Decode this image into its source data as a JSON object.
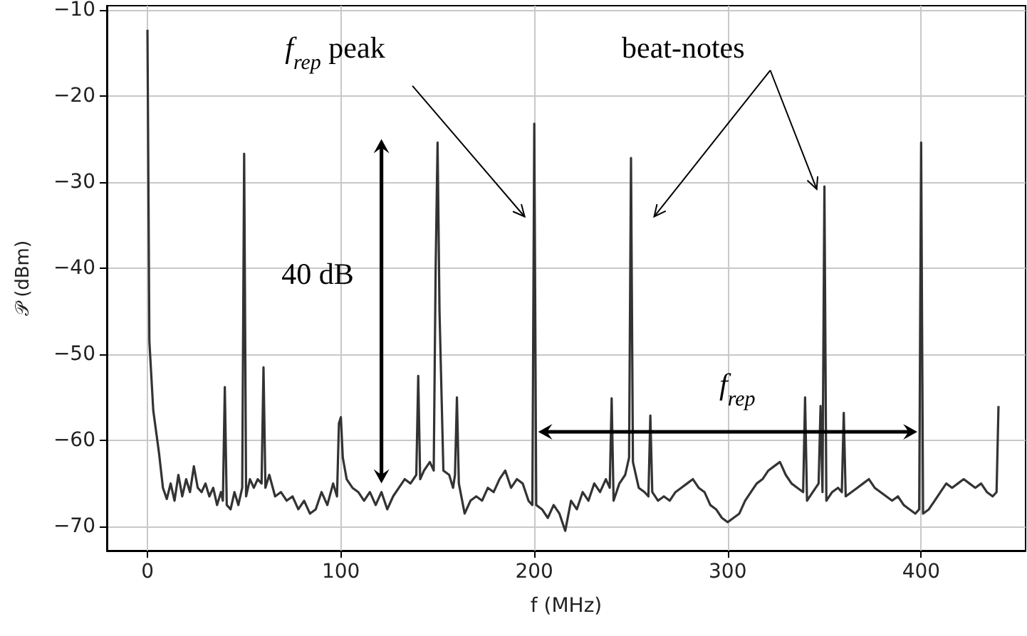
{
  "chart_data": {
    "type": "line",
    "xlabel": "f (MHz)",
    "ylabel": "𝒫 (dBm)",
    "xlim": [
      -21,
      454
    ],
    "ylim": [
      -72.8,
      -9.5
    ],
    "xticks": [
      0,
      100,
      200,
      300,
      400
    ],
    "yticks": [
      -70,
      -60,
      -50,
      -40,
      -30,
      -20,
      -10
    ],
    "grid": true,
    "marker": "none",
    "line_style": "solid",
    "annotations": [
      "f$_{rep}$ peak",
      "beat-notes",
      "40 dB",
      "f$_{rep}$"
    ],
    "series": [
      {
        "color": "#333333",
        "x": [
          0,
          1,
          3,
          6,
          8,
          10,
          12,
          14,
          16,
          18,
          20,
          22,
          24,
          26,
          28,
          30,
          32,
          34,
          36,
          38,
          39,
          40,
          41,
          43,
          45,
          47,
          49,
          50,
          51,
          53,
          55,
          57,
          59,
          60,
          61,
          63,
          66,
          69,
          72,
          75,
          78,
          81,
          84,
          87,
          90,
          93,
          96,
          98,
          99,
          100,
          101,
          103,
          106,
          109,
          112,
          115,
          118,
          121,
          124,
          127,
          130,
          133,
          136,
          139,
          140,
          141,
          143,
          146,
          148,
          149,
          150,
          151,
          153,
          156,
          158,
          159,
          160,
          161,
          164,
          167,
          170,
          173,
          176,
          179,
          182,
          185,
          188,
          191,
          194,
          197,
          199,
          200,
          201,
          204,
          207,
          210,
          213,
          216,
          219,
          222,
          225,
          228,
          231,
          234,
          237,
          239,
          240,
          241,
          244,
          247,
          249,
          250,
          251,
          254,
          257,
          259,
          260,
          261,
          264,
          267,
          270,
          273,
          276,
          279,
          282,
          285,
          288,
          291,
          294,
          297,
          300,
          303,
          306,
          309,
          312,
          315,
          318,
          321,
          324,
          327,
          330,
          333,
          336,
          339,
          340,
          341,
          344,
          347,
          348,
          349,
          350,
          351,
          354,
          357,
          359,
          360,
          361,
          364,
          367,
          370,
          373,
          376,
          379,
          382,
          385,
          388,
          391,
          394,
          397,
          399,
          400,
          401,
          404,
          407,
          410,
          413,
          416,
          419,
          422,
          425,
          428,
          431,
          434,
          437,
          439,
          440
        ],
        "values": [
          -12.3,
          -48.5,
          -56.5,
          -61.5,
          -65.5,
          -66.8,
          -65,
          -67,
          -64,
          -66.5,
          -64.5,
          -66,
          -63,
          -65.5,
          -66,
          -65,
          -66.5,
          -65.5,
          -67.5,
          -66,
          -67,
          -53.8,
          -67.5,
          -68,
          -66,
          -67.5,
          -65.5,
          -26.7,
          -66.5,
          -64.5,
          -65.5,
          -64.5,
          -65,
          -51.5,
          -65.5,
          -64,
          -66.5,
          -66,
          -67,
          -66.5,
          -68,
          -67,
          -68.5,
          -68,
          -66,
          -67.5,
          -65,
          -66.5,
          -58,
          -57.3,
          -62,
          -64.5,
          -65.5,
          -66,
          -67,
          -66,
          -67.5,
          -66,
          -68,
          -66.5,
          -65.5,
          -64.5,
          -65,
          -64,
          -52.5,
          -64.5,
          -63.5,
          -62.5,
          -63.5,
          -40,
          -25.4,
          -45,
          -63.5,
          -64,
          -65.5,
          -64,
          -55,
          -65,
          -68.5,
          -67,
          -66.5,
          -67,
          -65.5,
          -66,
          -64.5,
          -63.5,
          -65.5,
          -64.5,
          -65,
          -67,
          -67.5,
          -23.2,
          -67.5,
          -68,
          -69,
          -67.5,
          -68.5,
          -70.5,
          -67,
          -68,
          -66,
          -67,
          -65,
          -66,
          -64.5,
          -65.5,
          -55.1,
          -67,
          -65,
          -64,
          -62,
          -27.2,
          -62.5,
          -65.5,
          -66,
          -66.5,
          -57.1,
          -66,
          -67,
          -66.5,
          -67,
          -66,
          -65.5,
          -65,
          -64.5,
          -65.5,
          -66,
          -67.5,
          -68,
          -69,
          -69.5,
          -69,
          -68.5,
          -67,
          -66,
          -65,
          -64.5,
          -63.5,
          -63,
          -62.5,
          -64,
          -65,
          -65.5,
          -66,
          -55,
          -67,
          -66,
          -65,
          -56,
          -66,
          -30.5,
          -67,
          -66,
          -65.5,
          -66,
          -56.8,
          -66.5,
          -66,
          -65.5,
          -65,
          -64.5,
          -65.5,
          -66,
          -66.5,
          -67,
          -66.5,
          -67.5,
          -68,
          -68.5,
          -68,
          -25.4,
          -68.5,
          -68,
          -67,
          -66,
          -65,
          -65.5,
          -65,
          -64.5,
          -65,
          -65.5,
          -65,
          -66,
          -66.5,
          -66,
          -56
        ]
      }
    ]
  }
}
